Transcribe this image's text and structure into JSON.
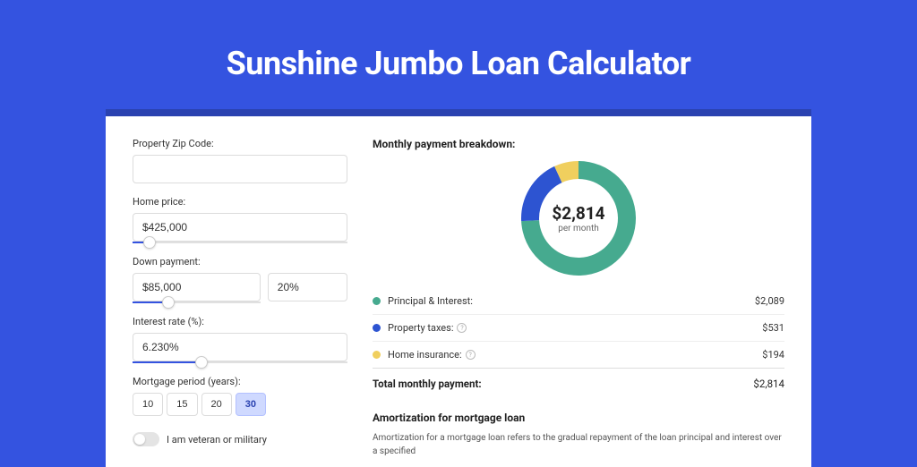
{
  "page": {
    "title": "Sunshine Jumbo Loan Calculator",
    "background_color": "#3453e0",
    "card_top_border": "#2a42b0"
  },
  "form": {
    "zip": {
      "label": "Property Zip Code:",
      "value": ""
    },
    "home_price": {
      "label": "Home price:",
      "value": "$425,000",
      "slider_pct": 8
    },
    "down_payment": {
      "label": "Down payment:",
      "amount": "$85,000",
      "pct": "20%",
      "slider_pct": 28
    },
    "interest_rate": {
      "label": "Interest rate (%):",
      "value": "6.230%",
      "slider_pct": 32
    },
    "period": {
      "label": "Mortgage period (years):",
      "options": [
        "10",
        "15",
        "20",
        "30"
      ],
      "selected": "30"
    },
    "veteran": {
      "label": "I am veteran or military",
      "checked": false
    }
  },
  "breakdown": {
    "title": "Monthly payment breakdown:",
    "donut": {
      "amount": "$2,814",
      "sub": "per month",
      "size": 128,
      "thickness": 20,
      "slices": [
        {
          "name": "principal_interest",
          "value": 2089,
          "color": "#46aa8f"
        },
        {
          "name": "property_taxes",
          "value": 531,
          "color": "#2d54d1"
        },
        {
          "name": "home_insurance",
          "value": 194,
          "color": "#f0cf5e"
        }
      ]
    },
    "rows": [
      {
        "label": "Principal & Interest:",
        "value": "$2,089",
        "color": "#46aa8f",
        "info": false
      },
      {
        "label": "Property taxes:",
        "value": "$531",
        "color": "#2d54d1",
        "info": true
      },
      {
        "label": "Home insurance:",
        "value": "$194",
        "color": "#f0cf5e",
        "info": true
      }
    ],
    "total": {
      "label": "Total monthly payment:",
      "value": "$2,814"
    }
  },
  "amortization": {
    "title": "Amortization for mortgage loan",
    "text": "Amortization for a mortgage loan refers to the gradual repayment of the loan principal and interest over a specified"
  }
}
